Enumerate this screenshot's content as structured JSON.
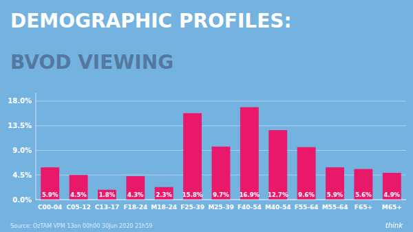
{
  "chart_data": {
    "type": "bar",
    "title": "DEMOGRAPHIC PROFILES:",
    "subtitle": "BVOD VIEWING",
    "categories": [
      "C00-04",
      "C05-12",
      "C13-17",
      "F18-24",
      "M18-24",
      "F25-39",
      "M25-39",
      "F40-54",
      "M40-54",
      "F55-64",
      "M55-64",
      "F65+",
      "M65+"
    ],
    "values": [
      5.9,
      4.5,
      1.8,
      4.3,
      2.3,
      15.8,
      9.7,
      16.9,
      12.7,
      9.6,
      5.9,
      5.6,
      4.9
    ],
    "value_labels": [
      "5.9%",
      "4.5%",
      "1.8%",
      "4.3%",
      "2.3%",
      "15.8%",
      "9.7%",
      "16.9%",
      "12.7%",
      "9.6%",
      "5.9%",
      "5.6%",
      "4.9%"
    ],
    "data_labels": true,
    "color": "#E8196A",
    "ylim": [
      0,
      19.5
    ],
    "yticks": [
      {
        "value": 0.0,
        "label": "0.0%"
      },
      {
        "value": 4.5,
        "label": "4.5%"
      },
      {
        "value": 9.0,
        "label": "9.0%"
      },
      {
        "value": 13.5,
        "label": "13.5%"
      },
      {
        "value": 18.0,
        "label": "18.0%"
      }
    ],
    "grid": true,
    "annotations": [
      "Source: OzTAM VPM 13on 00h00 30Jun 2020 21h59",
      "think"
    ]
  }
}
